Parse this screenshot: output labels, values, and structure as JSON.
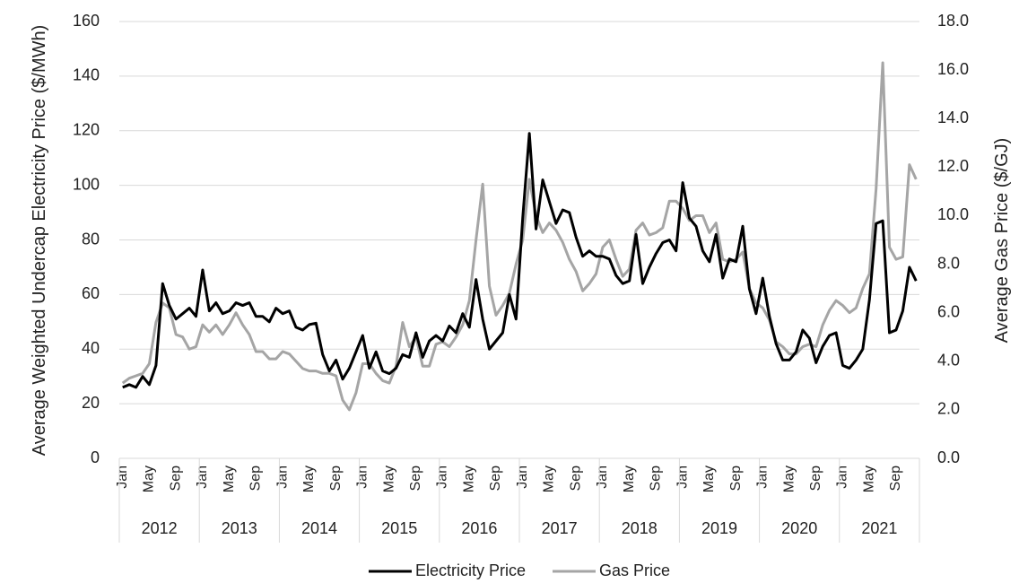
{
  "chart_data": {
    "type": "line",
    "y_label": "Average Weighted Undercap Electricity Price ($/MWh)",
    "y2_label": "Average Gas Price ($/GJ)",
    "categories": [
      "Jan",
      null,
      null,
      null,
      "May",
      null,
      null,
      null,
      "Sep",
      null,
      null,
      null,
      "Jan",
      null,
      null,
      null,
      "May",
      null,
      null,
      null,
      "Sep",
      null,
      null,
      null,
      "Jan",
      null,
      null,
      null,
      "May",
      null,
      null,
      null,
      "Sep",
      null,
      null,
      null,
      "Jan",
      null,
      null,
      null,
      "May",
      null,
      null,
      null,
      "Sep",
      null,
      null,
      null,
      "Jan",
      null,
      null,
      null,
      "May",
      null,
      null,
      null,
      "Sep",
      null,
      null,
      null,
      "Jan",
      null,
      null,
      null,
      "May",
      null,
      null,
      null,
      "Sep",
      null,
      null,
      null,
      "Jan",
      null,
      null,
      null,
      "May",
      null,
      null,
      null,
      "Sep",
      null,
      null,
      null,
      "Jan",
      null,
      null,
      null,
      "May",
      null,
      null,
      null,
      "Sep",
      null,
      null,
      null,
      "Jan",
      null,
      null,
      null,
      "May",
      null,
      null,
      null,
      "Sep",
      null,
      null,
      null,
      "Jan",
      null,
      null,
      null,
      "May",
      null,
      null,
      null,
      "Sep",
      null,
      null,
      null
    ],
    "year_groups": [
      "2012",
      "2013",
      "2014",
      "2015",
      "2016",
      "2017",
      "2018",
      "2019",
      "2020",
      "2021"
    ],
    "series": [
      {
        "name": "Electricity Price",
        "color": "#000000",
        "values": [
          26,
          27,
          26,
          30,
          27,
          34,
          64,
          56,
          51,
          53,
          55,
          52,
          69,
          54,
          57,
          53,
          54,
          57,
          56,
          57,
          52,
          52,
          50,
          55,
          53,
          54,
          48,
          47,
          49,
          49.5,
          38,
          32,
          36,
          29,
          33,
          39,
          45,
          33,
          39,
          32,
          31,
          33,
          38,
          37,
          46,
          37,
          43,
          45,
          43,
          48.5,
          46,
          53,
          48,
          65.5,
          51,
          40,
          43,
          46,
          60,
          51,
          88,
          119,
          84,
          102,
          94,
          86,
          91,
          90,
          81,
          74,
          76,
          74,
          74,
          73,
          67,
          64,
          65,
          82,
          64,
          70,
          75,
          79,
          80,
          76,
          101,
          88,
          85,
          76,
          72,
          82,
          66,
          73,
          72,
          85,
          62,
          53,
          66,
          52,
          42,
          36,
          36,
          39,
          47,
          44,
          35,
          41,
          45,
          46,
          34,
          33,
          36,
          40,
          58,
          86,
          87,
          46,
          47,
          54,
          70,
          65
        ]
      },
      {
        "name": "Gas Price",
        "color": "#a5a5a5",
        "axis": "y2",
        "values": [
          3.1,
          3.3,
          3.4,
          3.5,
          3.9,
          5.6,
          6.4,
          6.2,
          5.1,
          5.0,
          4.5,
          4.6,
          5.5,
          5.2,
          5.5,
          5.1,
          5.5,
          6.0,
          5.5,
          5.1,
          4.4,
          4.4,
          4.1,
          4.1,
          4.4,
          4.3,
          4.0,
          3.7,
          3.6,
          3.6,
          3.5,
          3.5,
          3.4,
          2.4,
          2.0,
          2.7,
          3.9,
          3.9,
          3.5,
          3.2,
          3.1,
          3.8,
          5.6,
          4.6,
          5.0,
          3.8,
          3.8,
          4.7,
          4.8,
          4.6,
          5.0,
          5.5,
          6.5,
          9.0,
          11.3,
          7.1,
          5.9,
          6.3,
          6.8,
          8.0,
          9.0,
          11.5,
          10.0,
          9.3,
          9.7,
          9.4,
          8.9,
          8.2,
          7.7,
          6.9,
          7.2,
          7.6,
          8.7,
          9.0,
          8.2,
          7.5,
          7.8,
          9.4,
          9.7,
          9.2,
          9.3,
          9.5,
          10.6,
          10.6,
          10.3,
          9.8,
          10.0,
          10.0,
          9.3,
          9.7,
          8.2,
          8.1,
          8.2,
          8.5,
          7.0,
          6.4,
          6.2,
          5.7,
          4.8,
          4.6,
          4.3,
          4.3,
          4.6,
          4.7,
          4.6,
          5.5,
          6.1,
          6.5,
          6.3,
          6.0,
          6.2,
          7.0,
          7.6,
          11.1,
          16.3,
          8.7,
          8.2,
          8.3,
          12.1,
          11.5
        ]
      }
    ],
    "ylim": [
      0,
      160
    ],
    "yticks": [
      0,
      20,
      40,
      60,
      80,
      100,
      120,
      140,
      160
    ],
    "y2lim": [
      0,
      18
    ],
    "y2ticks": [
      {
        "value": 0,
        "label": "0.0"
      },
      {
        "value": 2,
        "label": "2.0"
      },
      {
        "value": 4,
        "label": "4.0"
      },
      {
        "value": 6,
        "label": "6.0"
      },
      {
        "value": 8,
        "label": "8.0"
      },
      {
        "value": 10,
        "label": "10.0"
      },
      {
        "value": 12,
        "label": "12.0"
      },
      {
        "value": 14,
        "label": "14.0"
      },
      {
        "value": 16,
        "label": "16.0"
      },
      {
        "value": 18,
        "label": "18.0"
      }
    ],
    "grid": true,
    "legend": "bottom"
  }
}
